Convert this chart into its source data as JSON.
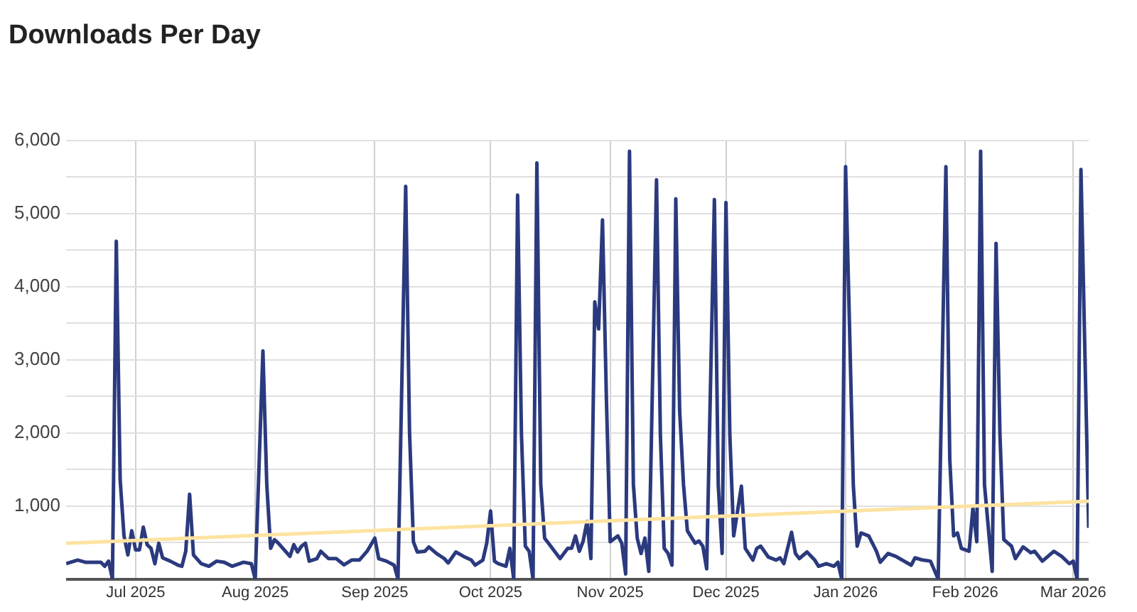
{
  "chart_data": {
    "type": "line",
    "title": "Downloads Per Day",
    "xlim": [
      "2025-06-13",
      "2026-03-05"
    ],
    "xticks": [
      {
        "value": "2025-07-01",
        "label": "Jul 2025"
      },
      {
        "value": "2025-08-01",
        "label": "Aug 2025"
      },
      {
        "value": "2025-09-01",
        "label": "Sep 2025"
      },
      {
        "value": "2025-10-01",
        "label": "Oct 2025"
      },
      {
        "value": "2025-11-01",
        "label": "Nov 2025"
      },
      {
        "value": "2025-12-01",
        "label": "Dec 2025"
      },
      {
        "value": "2026-01-01",
        "label": "Jan 2026"
      },
      {
        "value": "2026-02-01",
        "label": "Feb 2026"
      },
      {
        "value": "2026-03-01",
        "label": "Mar 2026"
      }
    ],
    "ylim": [
      0,
      6000
    ],
    "yticks": [
      {
        "value": 0,
        "label": null
      },
      {
        "value": 500,
        "label": null
      },
      {
        "value": 1000,
        "label": "1,000"
      },
      {
        "value": 1500,
        "label": null
      },
      {
        "value": 2000,
        "label": "2,000"
      },
      {
        "value": 2500,
        "label": null
      },
      {
        "value": 3000,
        "label": "3,000"
      },
      {
        "value": 3500,
        "label": null
      },
      {
        "value": 4000,
        "label": "4,000"
      },
      {
        "value": 4500,
        "label": null
      },
      {
        "value": 5000,
        "label": "5,000"
      },
      {
        "value": 5500,
        "label": null
      },
      {
        "value": 6000,
        "label": "6,000"
      }
    ],
    "grid": true,
    "legend": false,
    "marker": "none",
    "line_style": "solid",
    "series": [
      {
        "color": "#2b3a7e",
        "x": [
          "2025-06-13",
          "2025-06-16",
          "2025-06-18",
          "2025-06-22",
          "2025-06-23",
          "2025-06-24",
          "2025-06-25",
          "2025-06-26",
          "2025-06-27",
          "2025-06-28",
          "2025-06-29",
          "2025-06-30",
          "2025-07-01",
          "2025-07-02",
          "2025-07-03",
          "2025-07-04",
          "2025-07-05",
          "2025-07-06",
          "2025-07-07",
          "2025-07-08",
          "2025-07-10",
          "2025-07-12",
          "2025-07-13",
          "2025-07-14",
          "2025-07-15",
          "2025-07-16",
          "2025-07-18",
          "2025-07-20",
          "2025-07-22",
          "2025-07-24",
          "2025-07-26",
          "2025-07-29",
          "2025-07-31",
          "2025-08-01",
          "2025-08-03",
          "2025-08-04",
          "2025-08-05",
          "2025-08-06",
          "2025-08-07",
          "2025-08-10",
          "2025-08-11",
          "2025-08-12",
          "2025-08-13",
          "2025-08-14",
          "2025-08-15",
          "2025-08-17",
          "2025-08-18",
          "2025-08-20",
          "2025-08-22",
          "2025-08-24",
          "2025-08-26",
          "2025-08-28",
          "2025-08-30",
          "2025-09-01",
          "2025-09-02",
          "2025-09-04",
          "2025-09-06",
          "2025-09-07",
          "2025-09-09",
          "2025-09-10",
          "2025-09-11",
          "2025-09-12",
          "2025-09-14",
          "2025-09-15",
          "2025-09-17",
          "2025-09-19",
          "2025-09-20",
          "2025-09-22",
          "2025-09-24",
          "2025-09-26",
          "2025-09-27",
          "2025-09-29",
          "2025-09-30",
          "2025-10-01",
          "2025-10-02",
          "2025-10-03",
          "2025-10-05",
          "2025-10-06",
          "2025-10-07",
          "2025-10-08",
          "2025-10-09",
          "2025-10-10",
          "2025-10-11",
          "2025-10-12",
          "2025-10-13",
          "2025-10-14",
          "2025-10-15",
          "2025-10-17",
          "2025-10-19",
          "2025-10-21",
          "2025-10-22",
          "2025-10-23",
          "2025-10-24",
          "2025-10-25",
          "2025-10-26",
          "2025-10-27",
          "2025-10-28",
          "2025-10-29",
          "2025-10-30",
          "2025-10-31",
          "2025-11-01",
          "2025-11-03",
          "2025-11-04",
          "2025-11-05",
          "2025-11-06",
          "2025-11-07",
          "2025-11-08",
          "2025-11-09",
          "2025-11-10",
          "2025-11-11",
          "2025-11-13",
          "2025-11-14",
          "2025-11-15",
          "2025-11-16",
          "2025-11-17",
          "2025-11-18",
          "2025-11-19",
          "2025-11-20",
          "2025-11-21",
          "2025-11-23",
          "2025-11-24",
          "2025-11-25",
          "2025-11-26",
          "2025-11-28",
          "2025-11-29",
          "2025-11-30",
          "2025-12-01",
          "2025-12-02",
          "2025-12-03",
          "2025-12-05",
          "2025-12-06",
          "2025-12-08",
          "2025-12-09",
          "2025-12-10",
          "2025-12-12",
          "2025-12-14",
          "2025-12-15",
          "2025-12-16",
          "2025-12-18",
          "2025-12-19",
          "2025-12-20",
          "2025-12-22",
          "2025-12-24",
          "2025-12-25",
          "2025-12-27",
          "2025-12-29",
          "2025-12-30",
          "2025-12-31",
          "2026-01-01",
          "2026-01-02",
          "2026-01-03",
          "2026-01-04",
          "2026-01-05",
          "2026-01-07",
          "2026-01-09",
          "2026-01-10",
          "2026-01-12",
          "2026-01-14",
          "2026-01-15",
          "2026-01-18",
          "2026-01-19",
          "2026-01-21",
          "2026-01-23",
          "2026-01-25",
          "2026-01-27",
          "2026-01-28",
          "2026-01-29",
          "2026-01-30",
          "2026-01-31",
          "2026-02-02",
          "2026-02-03",
          "2026-02-04",
          "2026-02-05",
          "2026-02-06",
          "2026-02-08",
          "2026-02-09",
          "2026-02-10",
          "2026-02-11",
          "2026-02-13",
          "2026-02-14",
          "2026-02-16",
          "2026-02-18",
          "2026-02-19",
          "2026-02-21",
          "2026-02-24",
          "2026-02-26",
          "2026-02-28",
          "2026-03-01",
          "2026-03-02",
          "2026-03-03",
          "2026-03-05"
        ],
        "values": [
          210,
          260,
          230,
          230,
          175,
          245,
          0,
          4620,
          1360,
          590,
          330,
          660,
          400,
          400,
          710,
          470,
          420,
          210,
          490,
          290,
          245,
          190,
          175,
          380,
          1160,
          330,
          210,
          175,
          245,
          230,
          175,
          230,
          210,
          0,
          3120,
          1290,
          420,
          540,
          490,
          310,
          470,
          370,
          450,
          490,
          245,
          280,
          380,
          280,
          280,
          195,
          260,
          260,
          380,
          560,
          280,
          245,
          190,
          0,
          5370,
          2000,
          510,
          370,
          380,
          440,
          350,
          280,
          220,
          370,
          310,
          260,
          190,
          260,
          490,
          930,
          245,
          210,
          175,
          420,
          0,
          5250,
          1980,
          450,
          380,
          0,
          5690,
          1300,
          560,
          420,
          280,
          420,
          420,
          590,
          380,
          520,
          790,
          280,
          3790,
          3420,
          4910,
          2500,
          510,
          590,
          490,
          70,
          5850,
          1300,
          560,
          350,
          560,
          105,
          5460,
          1980,
          420,
          350,
          190,
          5200,
          2300,
          1290,
          660,
          490,
          520,
          450,
          140,
          5190,
          1290,
          350,
          5150,
          1980,
          590,
          1270,
          420,
          260,
          420,
          450,
          300,
          260,
          290,
          210,
          640,
          350,
          280,
          370,
          260,
          175,
          210,
          175,
          230,
          0,
          5640,
          3500,
          1290,
          450,
          630,
          590,
          380,
          230,
          350,
          310,
          280,
          190,
          290,
          260,
          245,
          0,
          5640,
          1640,
          590,
          630,
          420,
          380,
          970,
          510,
          5850,
          1290,
          105,
          4590,
          1980,
          540,
          450,
          280,
          440,
          360,
          380,
          245,
          380,
          310,
          210,
          245,
          0,
          5600,
          700
        ]
      },
      {
        "color": "#fde3a0",
        "x": [
          "2025-06-13",
          "2026-03-05"
        ],
        "values": [
          490,
          1065
        ]
      }
    ]
  }
}
